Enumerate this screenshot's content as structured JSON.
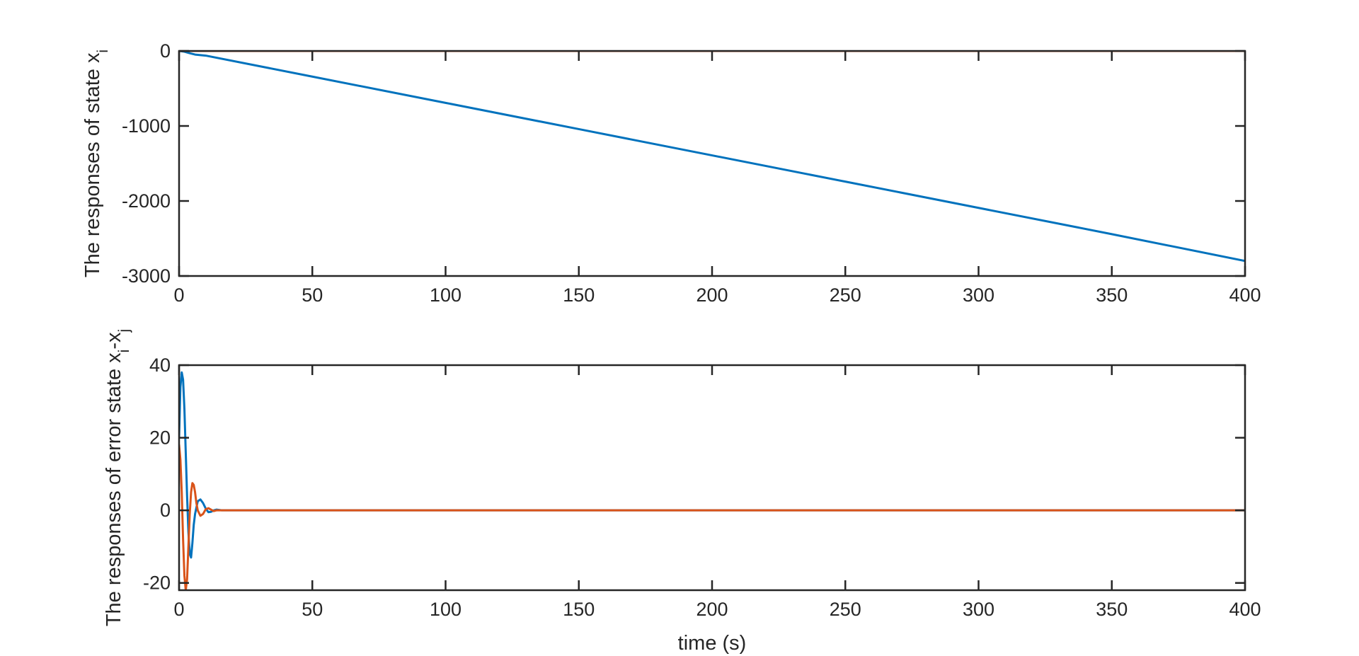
{
  "colors": {
    "series_1": "#0072BD",
    "series_2": "#D95319",
    "axes": "#262626",
    "background": "#ffffff"
  },
  "chart_data": [
    {
      "type": "line",
      "title": "",
      "xlabel": "",
      "ylabel": {
        "main": "The responses of state x",
        "subscript": "i"
      },
      "xlim": [
        0,
        400
      ],
      "ylim": [
        -3000,
        0
      ],
      "xticks": [
        0,
        50,
        100,
        150,
        200,
        250,
        300,
        350,
        400
      ],
      "xtick_labels": [
        "0",
        "50",
        "100",
        "150",
        "200",
        "250",
        "300",
        "350",
        "400"
      ],
      "yticks": [
        0,
        -1000,
        -2000,
        -3000
      ],
      "ytick_labels": [
        "0",
        "-1000",
        "-2000",
        "-3000"
      ],
      "grid": false,
      "legend": "none",
      "series": [
        {
          "x": [
            0,
            2,
            4,
            6,
            8,
            10,
            50,
            100,
            150,
            200,
            250,
            300,
            350,
            400
          ],
          "y": [
            0,
            -10,
            -30,
            -48,
            -55,
            -62,
            -342,
            -692,
            -1042,
            -1392,
            -1742,
            -2092,
            -2442,
            -2800
          ]
        },
        {
          "x": [
            0,
            400
          ],
          "y": [
            0,
            0
          ]
        }
      ]
    },
    {
      "type": "line",
      "title": "",
      "xlabel": "time (s)",
      "ylabel": {
        "main": "The responses of error state x",
        "subscript_1": "i",
        "separator": "-x",
        "subscript_2": "j"
      },
      "xlim": [
        0,
        400
      ],
      "ylim": [
        -22,
        40
      ],
      "xticks": [
        0,
        50,
        100,
        150,
        200,
        250,
        300,
        350,
        400
      ],
      "xtick_labels": [
        "0",
        "50",
        "100",
        "150",
        "200",
        "250",
        "300",
        "350",
        "400"
      ],
      "yticks": [
        40,
        20,
        0,
        -20
      ],
      "ytick_labels": [
        "40",
        "20",
        "0",
        "-20"
      ],
      "grid": false,
      "legend": "none",
      "series": [
        {
          "x": [
            0,
            0.5,
            1,
            1.5,
            2,
            2.5,
            3,
            3.5,
            4,
            4.5,
            5,
            5.5,
            6,
            7,
            8,
            9,
            10,
            11,
            12,
            13,
            14,
            16,
            18,
            20,
            400
          ],
          "y": [
            20,
            34,
            38,
            36,
            28,
            16,
            4,
            -6,
            -12,
            -13,
            -9,
            -4,
            -1,
            2.5,
            3,
            2,
            0.5,
            -0.5,
            -0.4,
            0,
            0.2,
            0,
            0,
            0,
            0
          ]
        },
        {
          "x": [
            0,
            0.5,
            1,
            1.5,
            2,
            2.5,
            3,
            3.5,
            4,
            4.5,
            5,
            5.5,
            6,
            6.5,
            7,
            8,
            9,
            10,
            11,
            12,
            13,
            14,
            16,
            18,
            20,
            400
          ],
          "y": [
            18,
            14,
            5,
            -8,
            -18,
            -22,
            -19,
            -10,
            -1,
            5,
            7.5,
            7,
            5,
            2,
            0,
            -1.5,
            -1,
            0.3,
            0.6,
            0.2,
            -0.2,
            0,
            0,
            0,
            0,
            0
          ]
        }
      ]
    }
  ]
}
